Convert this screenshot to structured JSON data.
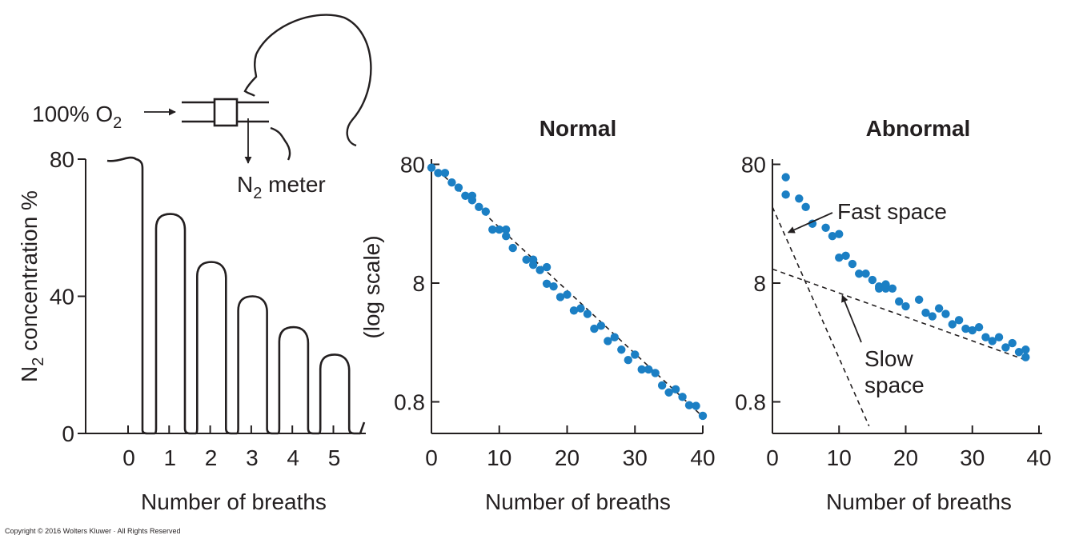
{
  "diagram": {
    "inlet_label": "100% O",
    "inlet_subscript": "2",
    "meter_label_prefix": "N",
    "meter_label_subscript": "2",
    "meter_label_suffix": " meter"
  },
  "chart_data": [
    {
      "type": "line",
      "title": "",
      "xlabel": "Number of breaths",
      "ylabel_prefix": "N",
      "ylabel_subscript": "2",
      "ylabel_suffix": " concentration %",
      "x_ticks": [
        "0",
        "1",
        "2",
        "3",
        "4",
        "5"
      ],
      "y_ticks": [
        0,
        40,
        80
      ],
      "ylim": [
        0,
        80
      ],
      "breath_peaks": [
        {
          "breath": 0,
          "value": 80
        },
        {
          "breath": 1,
          "value": 64
        },
        {
          "breath": 2,
          "value": 50
        },
        {
          "breath": 3,
          "value": 40
        },
        {
          "breath": 4,
          "value": 31
        },
        {
          "breath": 5,
          "value": 23
        }
      ]
    },
    {
      "type": "scatter",
      "title": "Normal",
      "xlabel": "Number of breaths",
      "ylabel": "(log scale)",
      "x_ticks": [
        0,
        10,
        20,
        30,
        40
      ],
      "y_ticks": [
        80,
        8,
        0.8
      ],
      "y_scale": "log",
      "xlim": [
        0,
        40
      ],
      "ylim": [
        0.5,
        80
      ],
      "points": [
        [
          0,
          75.0
        ],
        [
          1,
          67.7
        ],
        [
          2,
          67.7
        ],
        [
          3,
          56.3
        ],
        [
          4,
          51.0
        ],
        [
          5,
          43.5
        ],
        [
          6,
          39.9
        ],
        [
          6,
          43.5
        ],
        [
          7,
          35.0
        ],
        [
          8,
          32.0
        ],
        [
          9,
          22.6
        ],
        [
          10,
          22.6
        ],
        [
          11,
          22.6
        ],
        [
          11,
          19.9
        ],
        [
          12,
          15.8
        ],
        [
          14,
          12.6
        ],
        [
          15,
          12.6
        ],
        [
          15,
          11.4
        ],
        [
          16,
          10.3
        ],
        [
          17,
          10.9
        ],
        [
          17,
          7.9
        ],
        [
          18,
          7.5
        ],
        [
          19,
          6.1
        ],
        [
          20,
          6.4
        ],
        [
          21,
          4.7
        ],
        [
          22,
          4.9
        ],
        [
          23,
          4.4
        ],
        [
          24,
          3.3
        ],
        [
          25,
          3.5
        ],
        [
          26,
          2.6
        ],
        [
          27,
          2.8
        ],
        [
          28,
          2.2
        ],
        [
          29,
          1.8
        ],
        [
          30,
          2.0
        ],
        [
          31,
          1.5
        ],
        [
          32,
          1.5
        ],
        [
          33,
          1.4
        ],
        [
          34,
          1.1
        ],
        [
          35,
          0.96
        ],
        [
          36,
          1.02
        ],
        [
          37,
          0.88
        ],
        [
          38,
          0.75
        ],
        [
          39,
          0.74
        ],
        [
          40,
          0.61
        ]
      ],
      "fit_line": [
        [
          0,
          80
        ],
        [
          40,
          0.6
        ]
      ]
    },
    {
      "type": "scatter",
      "title": "Abnormal",
      "xlabel": "Number of breaths",
      "ylabel": "",
      "x_ticks": [
        0,
        10,
        20,
        30,
        40
      ],
      "y_ticks": [
        80,
        8,
        0.8
      ],
      "y_scale": "log",
      "xlim": [
        0,
        40
      ],
      "ylim": [
        0.5,
        80
      ],
      "points": [
        [
          2,
          62.3
        ],
        [
          2,
          44.5
        ],
        [
          4,
          41.2
        ],
        [
          5,
          35.0
        ],
        [
          6,
          25.3
        ],
        [
          8,
          23.4
        ],
        [
          9,
          19.9
        ],
        [
          10,
          20.7
        ],
        [
          10,
          13.1
        ],
        [
          11,
          13.6
        ],
        [
          12,
          11.6
        ],
        [
          13,
          9.6
        ],
        [
          14,
          9.6
        ],
        [
          15,
          8.5
        ],
        [
          16,
          7.5
        ],
        [
          16,
          7.2
        ],
        [
          17,
          7.2
        ],
        [
          17,
          7.8
        ],
        [
          18,
          7.2
        ],
        [
          19,
          5.6
        ],
        [
          20,
          5.1
        ],
        [
          22,
          5.8
        ],
        [
          23,
          4.5
        ],
        [
          24,
          4.2
        ],
        [
          25,
          4.9
        ],
        [
          26,
          4.4
        ],
        [
          27,
          3.6
        ],
        [
          28,
          3.9
        ],
        [
          29,
          3.3
        ],
        [
          30,
          3.2
        ],
        [
          31,
          3.4
        ],
        [
          32,
          2.8
        ],
        [
          33,
          2.6
        ],
        [
          34,
          2.8
        ],
        [
          35,
          2.3
        ],
        [
          36,
          2.5
        ],
        [
          37,
          2.1
        ],
        [
          38,
          2.2
        ],
        [
          38,
          1.9
        ]
      ],
      "fit_lines": [
        {
          "name": "Fast space",
          "points": [
            [
              0,
              35.0
            ],
            [
              14.5,
              0.5
            ]
          ]
        },
        {
          "name": "Slow space",
          "points": [
            [
              0,
              10.5
            ],
            [
              38,
              1.8
            ]
          ]
        }
      ],
      "annotations": [
        {
          "text": "Fast space",
          "target": [
            2,
            22
          ]
        },
        {
          "text": "Slow",
          "target": [
            10,
            6.7
          ]
        },
        {
          "text": "space",
          "target": [
            10,
            6.7
          ]
        }
      ]
    }
  ],
  "footer": {
    "copyright": "Copyright © 2016 Wolters Kluwer · All Rights Reserved"
  }
}
